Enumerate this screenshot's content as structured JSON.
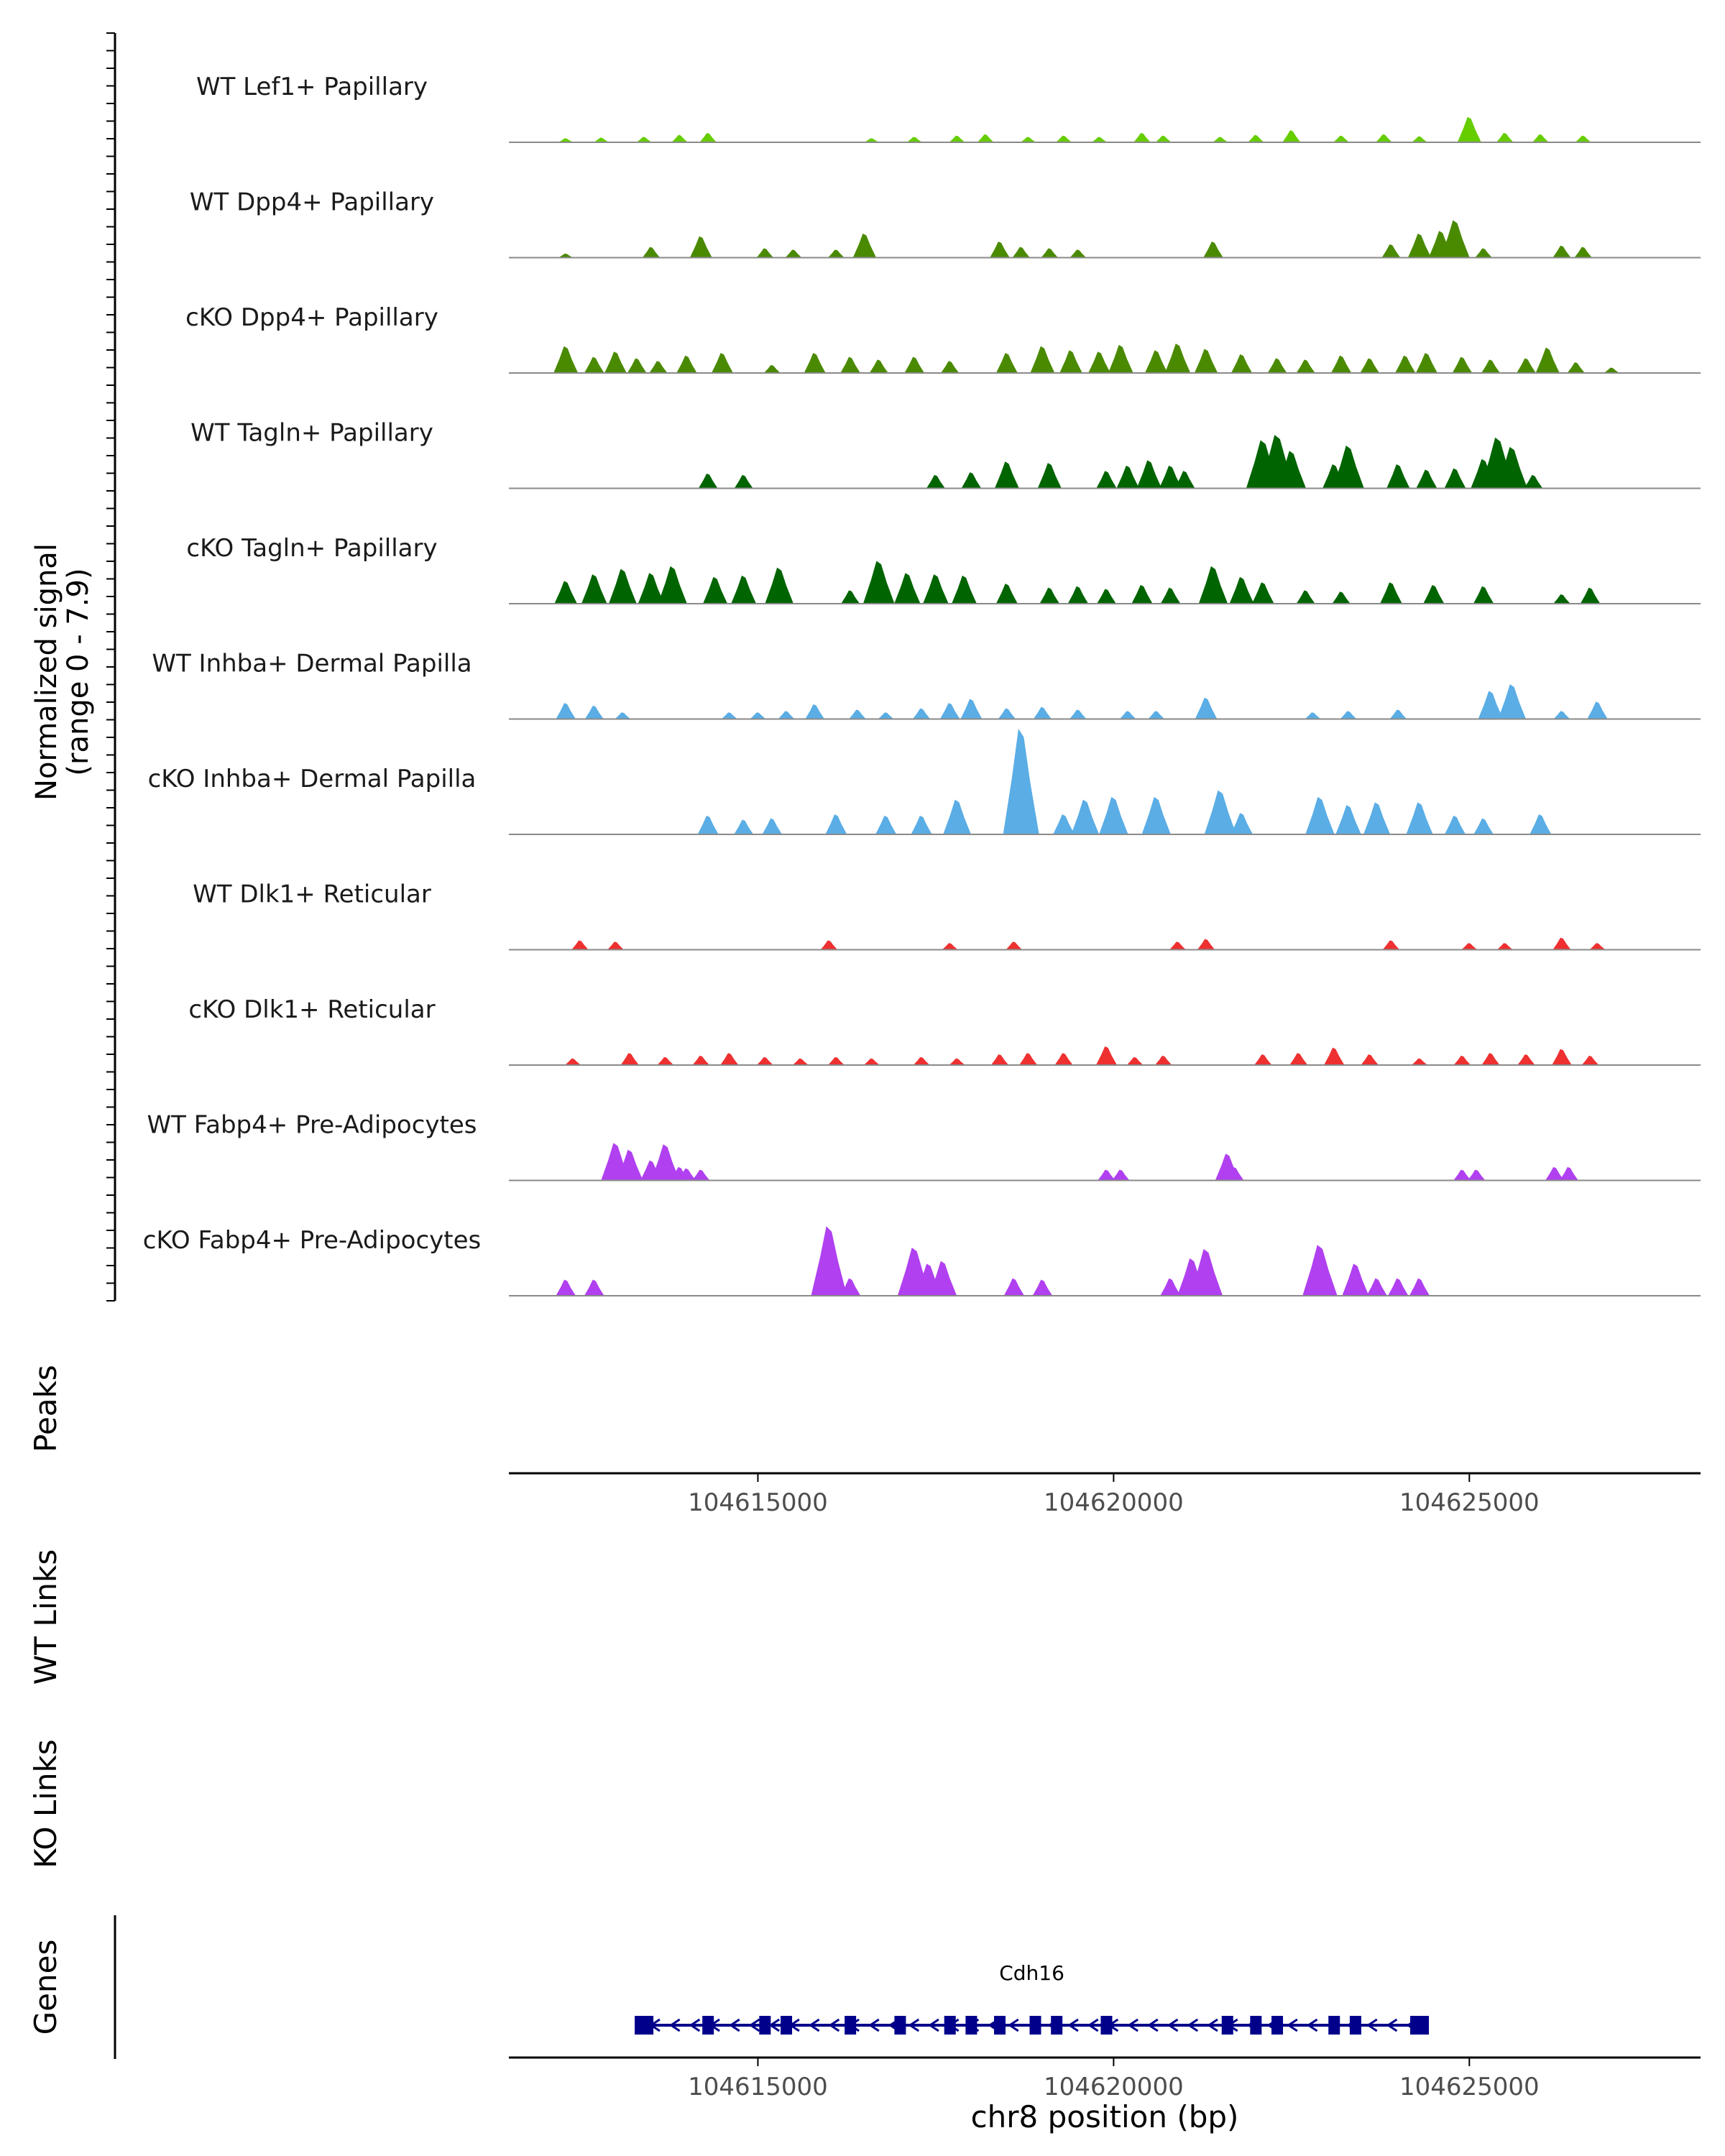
{
  "chart_data": {
    "type": "area",
    "title": "",
    "signal_axis_label_line1": "Normalized signal",
    "signal_axis_label_line2": "(range 0 - 7.9)",
    "signal_range": [
      0,
      7.9
    ],
    "xlabel": "chr8 position (bp)",
    "xlim": [
      104611500,
      104628250
    ],
    "x_ticks": [
      104615000,
      104620000,
      104625000
    ],
    "x_tick_labels": [
      "104615000",
      "104620000",
      "104625000"
    ],
    "tracks": [
      {
        "name": "WT Lef1+ Papillary",
        "color": "#66cd00",
        "peaks": [
          [
            104612300,
            0.3
          ],
          [
            104612800,
            0.35
          ],
          [
            104613400,
            0.4
          ],
          [
            104613900,
            0.55
          ],
          [
            104614300,
            0.7
          ],
          [
            104616600,
            0.3
          ],
          [
            104617200,
            0.4
          ],
          [
            104617800,
            0.5
          ],
          [
            104618200,
            0.6
          ],
          [
            104618800,
            0.4
          ],
          [
            104619300,
            0.5
          ],
          [
            104619800,
            0.4
          ],
          [
            104620400,
            0.7
          ],
          [
            104620700,
            0.5
          ],
          [
            104621500,
            0.4
          ],
          [
            104622000,
            0.55
          ],
          [
            104622500,
            0.9
          ],
          [
            104623200,
            0.5
          ],
          [
            104623800,
            0.6
          ],
          [
            104624300,
            0.45
          ],
          [
            104625000,
            1.9
          ],
          [
            104625500,
            0.7
          ],
          [
            104626000,
            0.6
          ],
          [
            104626600,
            0.5
          ]
        ]
      },
      {
        "name": "WT Dpp4+ Papillary",
        "color": "#4a8a00",
        "peaks": [
          [
            104612300,
            0.3
          ],
          [
            104613500,
            0.8
          ],
          [
            104614200,
            1.6
          ],
          [
            104615100,
            0.7
          ],
          [
            104615500,
            0.6
          ],
          [
            104616100,
            0.6
          ],
          [
            104616500,
            1.8
          ],
          [
            104618400,
            1.2
          ],
          [
            104618700,
            0.8
          ],
          [
            104619100,
            0.7
          ],
          [
            104619500,
            0.6
          ],
          [
            104621400,
            1.2
          ],
          [
            104623900,
            1.0
          ],
          [
            104624300,
            1.8
          ],
          [
            104624600,
            2.0
          ],
          [
            104624800,
            2.8
          ],
          [
            104625200,
            0.7
          ],
          [
            104626300,
            0.9
          ],
          [
            104626600,
            0.8
          ]
        ]
      },
      {
        "name": "cKO Dpp4+ Papillary",
        "color": "#4a8a00",
        "peaks": [
          [
            104612300,
            2.0
          ],
          [
            104612700,
            1.2
          ],
          [
            104613000,
            1.6
          ],
          [
            104613300,
            1.1
          ],
          [
            104613600,
            0.9
          ],
          [
            104614000,
            1.3
          ],
          [
            104614500,
            1.5
          ],
          [
            104615200,
            0.6
          ],
          [
            104615800,
            1.5
          ],
          [
            104616300,
            1.2
          ],
          [
            104616700,
            1.0
          ],
          [
            104617200,
            1.2
          ],
          [
            104617700,
            0.9
          ],
          [
            104618500,
            1.5
          ],
          [
            104619000,
            2.0
          ],
          [
            104619400,
            1.7
          ],
          [
            104619800,
            1.6
          ],
          [
            104620100,
            2.1
          ],
          [
            104620600,
            1.7
          ],
          [
            104620900,
            2.2
          ],
          [
            104621300,
            1.8
          ],
          [
            104621800,
            1.4
          ],
          [
            104622300,
            1.1
          ],
          [
            104622700,
            1.0
          ],
          [
            104623200,
            1.3
          ],
          [
            104623600,
            1.1
          ],
          [
            104624100,
            1.3
          ],
          [
            104624400,
            1.5
          ],
          [
            104624900,
            1.2
          ],
          [
            104625300,
            1.0
          ],
          [
            104625800,
            1.1
          ],
          [
            104626100,
            1.9
          ],
          [
            104626500,
            0.8
          ],
          [
            104627000,
            0.4
          ]
        ]
      },
      {
        "name": "WT Tagln+ Papillary",
        "color": "#006400",
        "peaks": [
          [
            104614300,
            1.1
          ],
          [
            104614800,
            1.0
          ],
          [
            104617500,
            1.0
          ],
          [
            104618000,
            1.2
          ],
          [
            104618500,
            2.0
          ],
          [
            104619100,
            1.9
          ],
          [
            104619900,
            1.3
          ],
          [
            104620200,
            1.7
          ],
          [
            104620500,
            2.1
          ],
          [
            104620800,
            1.7
          ],
          [
            104621000,
            1.3
          ],
          [
            104622100,
            3.6
          ],
          [
            104622300,
            4.0
          ],
          [
            104622500,
            2.8
          ],
          [
            104623100,
            1.8
          ],
          [
            104623300,
            3.2
          ],
          [
            104624000,
            1.8
          ],
          [
            104624400,
            1.4
          ],
          [
            104624800,
            1.5
          ],
          [
            104625200,
            2.2
          ],
          [
            104625400,
            3.8
          ],
          [
            104625600,
            3.1
          ],
          [
            104625900,
            1.0
          ]
        ]
      },
      {
        "name": "cKO Tagln+ Papillary",
        "color": "#006400",
        "peaks": [
          [
            104612300,
            1.7
          ],
          [
            104612700,
            2.2
          ],
          [
            104613100,
            2.6
          ],
          [
            104613500,
            2.3
          ],
          [
            104613800,
            2.8
          ],
          [
            104614400,
            2.0
          ],
          [
            104614800,
            2.1
          ],
          [
            104615300,
            2.7
          ],
          [
            104616300,
            1.0
          ],
          [
            104616700,
            3.2
          ],
          [
            104617100,
            2.3
          ],
          [
            104617500,
            2.2
          ],
          [
            104617900,
            2.1
          ],
          [
            104618500,
            1.5
          ],
          [
            104619100,
            1.2
          ],
          [
            104619500,
            1.3
          ],
          [
            104619900,
            1.1
          ],
          [
            104620400,
            1.4
          ],
          [
            104620800,
            1.2
          ],
          [
            104621400,
            2.8
          ],
          [
            104621800,
            2.0
          ],
          [
            104622100,
            1.6
          ],
          [
            104622700,
            1.0
          ],
          [
            104623200,
            0.9
          ],
          [
            104623900,
            1.6
          ],
          [
            104624500,
            1.4
          ],
          [
            104625200,
            1.3
          ],
          [
            104626300,
            0.7
          ],
          [
            104626700,
            1.2
          ]
        ]
      },
      {
        "name": "WT Inhba+ Dermal Papilla",
        "color": "#5aade5",
        "peaks": [
          [
            104612300,
            1.2
          ],
          [
            104612700,
            1.0
          ],
          [
            104613100,
            0.5
          ],
          [
            104614600,
            0.5
          ],
          [
            104615000,
            0.5
          ],
          [
            104615400,
            0.6
          ],
          [
            104615800,
            1.1
          ],
          [
            104616400,
            0.7
          ],
          [
            104616800,
            0.5
          ],
          [
            104617300,
            0.8
          ],
          [
            104617700,
            1.2
          ],
          [
            104618000,
            1.5
          ],
          [
            104618500,
            0.8
          ],
          [
            104619000,
            0.9
          ],
          [
            104619500,
            0.7
          ],
          [
            104620200,
            0.6
          ],
          [
            104620600,
            0.6
          ],
          [
            104621300,
            1.6
          ],
          [
            104622800,
            0.5
          ],
          [
            104623300,
            0.6
          ],
          [
            104624000,
            0.7
          ],
          [
            104625300,
            2.1
          ],
          [
            104625600,
            2.6
          ],
          [
            104626300,
            0.6
          ],
          [
            104626800,
            1.3
          ]
        ]
      },
      {
        "name": "cKO Inhba+ Dermal Papilla",
        "color": "#5aade5",
        "peaks": [
          [
            104614300,
            1.4
          ],
          [
            104614800,
            1.1
          ],
          [
            104615200,
            1.2
          ],
          [
            104616100,
            1.5
          ],
          [
            104616800,
            1.4
          ],
          [
            104617300,
            1.4
          ],
          [
            104617800,
            2.6
          ],
          [
            104618700,
            7.9
          ],
          [
            104619300,
            1.5
          ],
          [
            104619600,
            2.6
          ],
          [
            104620000,
            2.8
          ],
          [
            104620600,
            2.8
          ],
          [
            104621500,
            3.3
          ],
          [
            104621800,
            1.6
          ],
          [
            104622900,
            2.8
          ],
          [
            104623300,
            2.2
          ],
          [
            104623700,
            2.4
          ],
          [
            104624300,
            2.4
          ],
          [
            104624800,
            1.4
          ],
          [
            104625200,
            1.2
          ],
          [
            104626000,
            1.5
          ]
        ]
      },
      {
        "name": "WT Dlk1+ Reticular",
        "color": "#ee3030",
        "peaks": [
          [
            104612500,
            0.7
          ],
          [
            104613000,
            0.6
          ],
          [
            104616000,
            0.7
          ],
          [
            104617700,
            0.5
          ],
          [
            104618600,
            0.6
          ],
          [
            104620900,
            0.6
          ],
          [
            104621300,
            0.8
          ],
          [
            104623900,
            0.7
          ],
          [
            104625000,
            0.5
          ],
          [
            104625500,
            0.5
          ],
          [
            104626300,
            0.9
          ],
          [
            104626800,
            0.5
          ]
        ]
      },
      {
        "name": "cKO Dlk1+ Reticular",
        "color": "#ee3030",
        "peaks": [
          [
            104612400,
            0.5
          ],
          [
            104613200,
            0.9
          ],
          [
            104613700,
            0.6
          ],
          [
            104614200,
            0.7
          ],
          [
            104614600,
            0.9
          ],
          [
            104615100,
            0.6
          ],
          [
            104615600,
            0.5
          ],
          [
            104616100,
            0.6
          ],
          [
            104616600,
            0.5
          ],
          [
            104617300,
            0.6
          ],
          [
            104617800,
            0.5
          ],
          [
            104618400,
            0.8
          ],
          [
            104618800,
            0.9
          ],
          [
            104619300,
            0.9
          ],
          [
            104619900,
            1.4
          ],
          [
            104620300,
            0.6
          ],
          [
            104620700,
            0.7
          ],
          [
            104622100,
            0.8
          ],
          [
            104622600,
            0.9
          ],
          [
            104623100,
            1.3
          ],
          [
            104623600,
            0.8
          ],
          [
            104624300,
            0.5
          ],
          [
            104624900,
            0.7
          ],
          [
            104625300,
            0.9
          ],
          [
            104625800,
            0.8
          ],
          [
            104626300,
            1.2
          ],
          [
            104626700,
            0.7
          ]
        ]
      },
      {
        "name": "WT Fabp4+ Pre-Adipocytes",
        "color": "#b040f0",
        "peaks": [
          [
            104613000,
            2.8
          ],
          [
            104613200,
            2.3
          ],
          [
            104613500,
            1.5
          ],
          [
            104613700,
            2.7
          ],
          [
            104613900,
            1.0
          ],
          [
            104614000,
            0.9
          ],
          [
            104614200,
            0.8
          ],
          [
            104619900,
            0.8
          ],
          [
            104620100,
            0.8
          ],
          [
            104621600,
            2.0
          ],
          [
            104621700,
            1.0
          ],
          [
            104624900,
            0.8
          ],
          [
            104625100,
            0.8
          ],
          [
            104626200,
            1.0
          ],
          [
            104626400,
            1.0
          ]
        ]
      },
      {
        "name": "cKO Fabp4+ Pre-Adipocytes",
        "color": "#b040f0",
        "peaks": [
          [
            104612300,
            1.2
          ],
          [
            104612700,
            1.2
          ],
          [
            104616000,
            5.2
          ],
          [
            104616300,
            1.3
          ],
          [
            104617200,
            3.6
          ],
          [
            104617400,
            2.4
          ],
          [
            104617600,
            2.6
          ],
          [
            104618600,
            1.3
          ],
          [
            104619000,
            1.2
          ],
          [
            104620800,
            1.3
          ],
          [
            104621100,
            2.8
          ],
          [
            104621300,
            3.5
          ],
          [
            104622900,
            3.8
          ],
          [
            104623400,
            2.4
          ],
          [
            104623700,
            1.3
          ],
          [
            104624000,
            1.3
          ],
          [
            104624300,
            1.3
          ]
        ]
      }
    ],
    "peaks_label": "Peaks",
    "links": [
      "WT Links",
      "KO Links"
    ],
    "genes_label": "Genes",
    "gene": {
      "name": "Cdh16",
      "strand": "-",
      "start": 104613300,
      "end": 104624400,
      "exons": [
        104613400,
        104614300,
        104615100,
        104615400,
        104616300,
        104617000,
        104617700,
        104618000,
        104618400,
        104618900,
        104619200,
        104619900,
        104621600,
        104622000,
        104622300,
        104623100,
        104623400,
        104624300
      ],
      "color": "#00008b"
    }
  }
}
